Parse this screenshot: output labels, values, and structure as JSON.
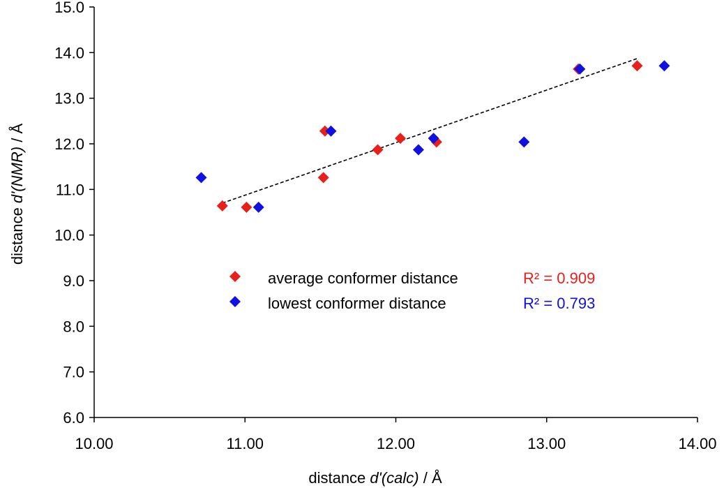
{
  "chart_data": {
    "type": "scatter",
    "xlim": [
      10.0,
      14.0
    ],
    "ylim": [
      6.0,
      15.0
    ],
    "x_ticks": [
      "10.00",
      "11.00",
      "12.00",
      "13.00",
      "14.00"
    ],
    "y_ticks": [
      "6.0",
      "7.0",
      "8.0",
      "9.0",
      "10.0",
      "11.0",
      "12.0",
      "13.0",
      "14.0",
      "15.0"
    ],
    "xlabel": {
      "prefix": "distance ",
      "italic": "d'(calc)",
      "suffix": " / Å"
    },
    "ylabel": {
      "prefix": "distance ",
      "italic": "d'(NMR)",
      "suffix": " / Å"
    },
    "grid": false,
    "legend_position": "center",
    "series": [
      {
        "name": "average conformer distance",
        "color": "#e8201c",
        "marker": "diamond",
        "r2_label": "R² = 0.909",
        "points": [
          [
            10.85,
            10.64
          ],
          [
            11.01,
            10.61
          ],
          [
            11.52,
            11.26
          ],
          [
            11.53,
            12.28
          ],
          [
            11.88,
            11.87
          ],
          [
            12.03,
            12.12
          ],
          [
            12.27,
            12.04
          ],
          [
            13.21,
            13.64
          ],
          [
            13.6,
            13.71
          ]
        ]
      },
      {
        "name": "lowest conformer distance",
        "color": "#1010e0",
        "marker": "diamond",
        "r2_label": "R² = 0.793",
        "points": [
          [
            10.71,
            11.26
          ],
          [
            11.09,
            10.61
          ],
          [
            11.57,
            12.28
          ],
          [
            12.15,
            11.87
          ],
          [
            12.25,
            12.12
          ],
          [
            12.85,
            12.04
          ],
          [
            13.22,
            13.64
          ],
          [
            13.78,
            13.71
          ]
        ]
      }
    ],
    "trendline": {
      "style": "dashed",
      "color": "#000000",
      "x": [
        10.85,
        13.6
      ],
      "y": [
        10.7,
        13.87
      ]
    }
  }
}
